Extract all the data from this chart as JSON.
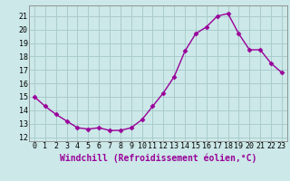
{
  "x": [
    0,
    1,
    2,
    3,
    4,
    5,
    6,
    7,
    8,
    9,
    10,
    11,
    12,
    13,
    14,
    15,
    16,
    17,
    18,
    19,
    20,
    21,
    22,
    23
  ],
  "y": [
    15.0,
    14.3,
    13.7,
    13.2,
    12.7,
    12.6,
    12.7,
    12.5,
    12.5,
    12.7,
    13.3,
    14.3,
    15.3,
    16.5,
    18.4,
    19.7,
    20.2,
    21.0,
    21.2,
    19.7,
    18.5,
    18.5,
    17.5,
    16.8
  ],
  "line_color": "#990099",
  "marker": "D",
  "marker_size": 2.5,
  "bg_color": "#cce8e8",
  "grid_color": "#aacccc",
  "xlabel": "Windchill (Refroidissement éolien,°C)",
  "xlabel_fontsize": 7,
  "ylabel_ticks": [
    12,
    13,
    14,
    15,
    16,
    17,
    18,
    19,
    20,
    21
  ],
  "xtick_labels": [
    "0",
    "1",
    "2",
    "3",
    "4",
    "5",
    "6",
    "7",
    "8",
    "9",
    "10",
    "11",
    "12",
    "13",
    "14",
    "15",
    "16",
    "17",
    "18",
    "19",
    "20",
    "21",
    "22",
    "23"
  ],
  "ylim": [
    11.7,
    21.8
  ],
  "xlim": [
    -0.5,
    23.5
  ],
  "tick_fontsize": 6,
  "linewidth": 1.0
}
